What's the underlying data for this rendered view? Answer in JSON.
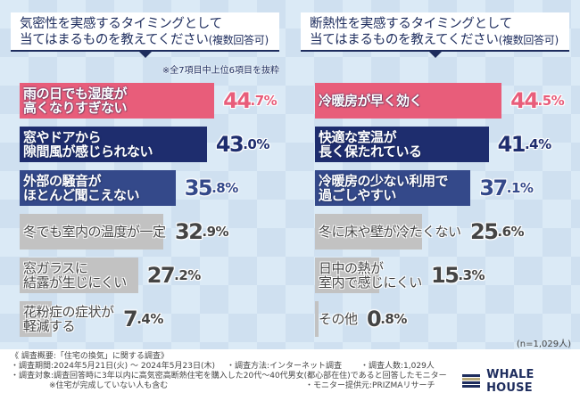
{
  "colors": {
    "pink": "#e85d7a",
    "navy": "#1e2d6e",
    "blue": "#34498a",
    "gray": "#c2c2c2",
    "gray_text": "#444444",
    "title": "#1e2d5e",
    "logo_gold": "#b8a97a"
  },
  "chart_data": [
    {
      "type": "bar",
      "orientation": "horizontal",
      "title": "気密性を実感するタイミングとして当てはまるものを教えてください(複数回答可)",
      "note": "※全7項目中上位6項目を抜粋",
      "categories": [
        "雨の日でも湿度が高くなりすぎない",
        "窓やドアから隙間風が感じられない",
        "外部の騒音がほとんど聞こえない",
        "冬でも室内の温度が一定",
        "窓ガラスに結露が生じにくい",
        "花粉症の症状が軽減する"
      ],
      "values": [
        44.7,
        43.0,
        35.8,
        32.9,
        27.2,
        7.4
      ],
      "unit": "%",
      "xlim": [
        0,
        50
      ]
    },
    {
      "type": "bar",
      "orientation": "horizontal",
      "title": "断熱性を実感するタイミングとして当てはまるものを教えてください(複数回答可)",
      "categories": [
        "冷暖房が早く効く",
        "快適な室温が長く保たれている",
        "冷暖房の少ない利用で過ごしやすい",
        "冬に床や壁が冷たくない",
        "日中の熱が室内で感じにくい",
        "その他"
      ],
      "values": [
        44.5,
        41.4,
        37.1,
        25.6,
        15.3,
        0.8
      ],
      "unit": "%",
      "xlim": [
        0,
        50
      ]
    }
  ],
  "left": {
    "title_line1": "気密性を実感するタイミングとして",
    "title_line2a": "当てはまるものを教えてください",
    "title_line2b": "(複数回答可)",
    "note": "※全7項目中上位6項目を抜粋",
    "bars": [
      {
        "label_lines": [
          "雨の日でも湿度が",
          "高くなりすぎない"
        ],
        "int": "44",
        "dec": ".7%",
        "style": "pink"
      },
      {
        "label_lines": [
          "窓やドアから",
          "隙間風が感じられない"
        ],
        "int": "43",
        "dec": ".0%",
        "style": "navy"
      },
      {
        "label_lines": [
          "外部の騒音が",
          "ほとんど聞こえない"
        ],
        "int": "35",
        "dec": ".8%",
        "style": "blue"
      },
      {
        "label_lines": [
          "冬でも室内の温度が一定"
        ],
        "int": "32",
        "dec": ".9%",
        "style": "gray"
      },
      {
        "label_lines": [
          "窓ガラスに",
          "結露が生じにくい"
        ],
        "int": "27",
        "dec": ".2%",
        "style": "gray"
      },
      {
        "label_lines": [
          "花粉症の症状が",
          "軽減する"
        ],
        "int": "7",
        "dec": ".4%",
        "style": "gray"
      }
    ]
  },
  "right": {
    "title_line1": "断熱性を実感するタイミングとして",
    "title_line2a": "当てはまるものを教えてください",
    "title_line2b": "(複数回答可)",
    "bars": [
      {
        "label_lines": [
          "冷暖房が早く効く"
        ],
        "int": "44",
        "dec": ".5%",
        "style": "pink"
      },
      {
        "label_lines": [
          "快適な室温が",
          "長く保たれている"
        ],
        "int": "41",
        "dec": ".4%",
        "style": "navy"
      },
      {
        "label_lines": [
          "冷暖房の少ない利用で",
          "過ごしやすい"
        ],
        "int": "37",
        "dec": ".1%",
        "style": "blue"
      },
      {
        "label_lines": [
          "冬に床や壁が冷たくない"
        ],
        "int": "25",
        "dec": ".6%",
        "style": "gray"
      },
      {
        "label_lines": [
          "日中の熱が",
          "室内で感じにくい"
        ],
        "int": "15",
        "dec": ".3%",
        "style": "gray"
      },
      {
        "label_lines": [
          "その他"
        ],
        "int": "0",
        "dec": ".8%",
        "style": "gray"
      }
    ],
    "n_label": "(n=1,029人)"
  },
  "footer": {
    "overview": "《 調査概要:「住宅の換気」に関する調査》",
    "period": "・調査期間:2024年5月21日(火) ～ 2024年5月23日(木)",
    "method": "・調査方法:インターネット調査",
    "respondents": "・調査人数:1,029人",
    "target": "・調査対象:調査回答時に3年以内に高気密高断熱住宅を購入した20代～40代男女(都心部在住)であると回答したモニター",
    "target_note": "※住宅が完成していない人も含む",
    "provider": "・モニター提供元:PRIZMAリサーチ"
  },
  "logo": {
    "text": "WHALE HOUSE"
  }
}
